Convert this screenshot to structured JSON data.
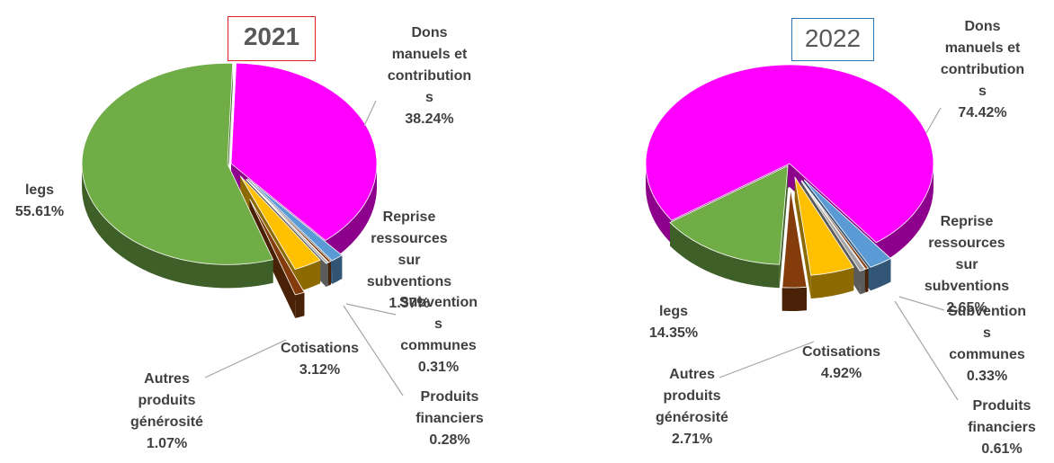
{
  "chart_data": [
    {
      "type": "pie",
      "title": "2021",
      "categories": [
        "Dons manuels et contributions",
        "Reprise ressources sur subventions",
        "Subventions communes",
        "Produits financiers",
        "Cotisations",
        "Autres produits générosité",
        "legs"
      ],
      "values": [
        38.24,
        1.37,
        0.31,
        0.28,
        3.12,
        1.07,
        55.61
      ],
      "value_labels": [
        "38.24%",
        "1.37%",
        "0.31%",
        "0.28%",
        "3.12%",
        "1.07%",
        "55.61%"
      ],
      "colors": [
        "#ff00ff",
        "#5b9bd5",
        "#843c0c",
        "#a5a5a5",
        "#ffc000",
        "#843c0c",
        "#70ad47"
      ]
    },
    {
      "type": "pie",
      "title": "2022",
      "categories": [
        "Dons manuels et contributions",
        "Reprise ressources sur subventions",
        "Subventions communes",
        "Produits financiers",
        "Cotisations",
        "Autres produits générosité",
        "legs"
      ],
      "values": [
        74.42,
        2.65,
        0.33,
        0.61,
        4.92,
        2.71,
        14.35
      ],
      "value_labels": [
        "74.42%",
        "2.65%",
        "0.33%",
        "0.61%",
        "4.92%",
        "2.71%",
        "14.35%"
      ],
      "colors": [
        "#ff00ff",
        "#5b9bd5",
        "#843c0c",
        "#a5a5a5",
        "#ffc000",
        "#843c0c",
        "#70ad47"
      ]
    }
  ]
}
